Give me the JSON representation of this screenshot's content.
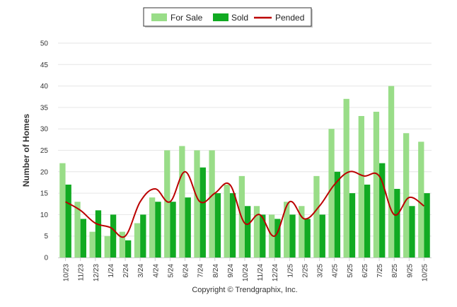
{
  "chart_data": {
    "type": "bar",
    "title": "",
    "xlabel": "",
    "ylabel": "Number of Homes",
    "ylim": [
      0,
      50
    ],
    "ytick_step": 5,
    "categories": [
      "10/23",
      "11/23",
      "12/23",
      "1/24",
      "2/24",
      "3/24",
      "4/24",
      "5/24",
      "6/24",
      "7/24",
      "8/24",
      "9/24",
      "10/24",
      "11/24",
      "12/24",
      "1/25",
      "2/25",
      "3/25",
      "4/25",
      "5/25",
      "6/25",
      "7/25",
      "8/25",
      "9/25",
      "10/25"
    ],
    "series": [
      {
        "name": "For Sale",
        "type": "bar",
        "color": "#99dd88",
        "values": [
          22,
          13,
          6,
          5,
          6,
          8,
          14,
          25,
          26,
          25,
          25,
          17,
          19,
          12,
          10,
          13,
          12,
          19,
          30,
          37,
          33,
          34,
          40,
          29,
          27
        ]
      },
      {
        "name": "Sold",
        "type": "bar",
        "color": "#11aa22",
        "values": [
          17,
          9,
          11,
          10,
          4,
          10,
          13,
          13,
          14,
          21,
          15,
          15,
          12,
          10,
          9,
          10,
          9,
          10,
          20,
          15,
          17,
          22,
          16,
          12,
          15
        ]
      },
      {
        "name": "Pended",
        "type": "line",
        "color": "#bb0000",
        "values": [
          13,
          11,
          8,
          7,
          5,
          13,
          16,
          13,
          20,
          13,
          15,
          17,
          8,
          10,
          5,
          13,
          9,
          12,
          17,
          20,
          19,
          19,
          10,
          14,
          12
        ]
      }
    ],
    "grid": true,
    "legend_position": "top-center"
  },
  "footer": {
    "copyright": "Copyright © Trendgraphix, Inc."
  }
}
